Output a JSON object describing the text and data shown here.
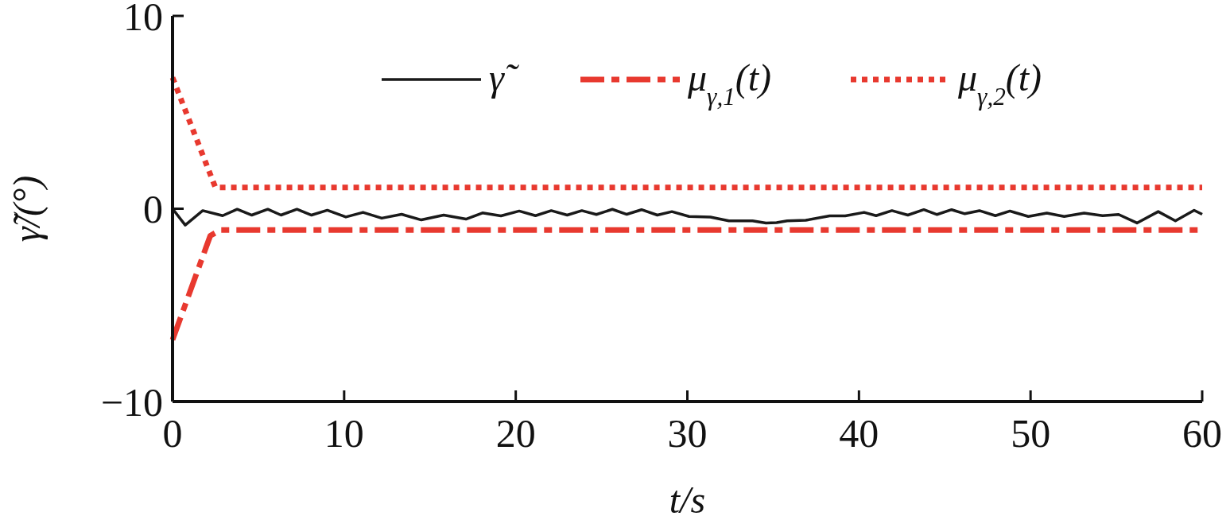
{
  "chart_data": {
    "type": "line",
    "xlabel": "t/s",
    "ylabel": "γ̃/(°)",
    "xlim": [
      0,
      60
    ],
    "ylim": [
      -10,
      10
    ],
    "xticks": [
      0,
      10,
      20,
      30,
      40,
      50,
      60
    ],
    "yticks": [
      {
        "value": -10,
        "label": "−10"
      },
      0,
      10
    ],
    "grid": false,
    "legend": "top",
    "marker": "none",
    "series": [
      {
        "name": "γ̃",
        "color": "#1a1a1a",
        "line_style": "solid",
        "x": [
          0,
          0.74,
          1.76,
          2.92,
          3.77,
          4.62,
          5.55,
          6.32,
          7.25,
          8.1,
          9.02,
          10.1,
          11.1,
          12.19,
          13.35,
          14.5,
          15.8,
          17.1,
          18.06,
          19.14,
          20.2,
          21.15,
          22.07,
          23.0,
          23.85,
          24.7,
          25.63,
          26.47,
          27.33,
          28.25,
          29.1,
          30.1,
          31.34,
          32.42,
          33.8,
          34.58,
          35.2,
          35.82,
          36.9,
          38.29,
          39.2,
          40.3,
          41.0,
          41.92,
          42.85,
          43.78,
          44.55,
          45.4,
          46.17,
          47.02,
          47.95,
          48.8,
          49.87,
          50.95,
          51.96,
          53.12,
          54.2,
          55.13,
          56.2,
          57.44,
          58.44,
          59.53,
          60
        ],
        "values": [
          0,
          -0.85,
          -0.1,
          -0.36,
          -0.03,
          -0.33,
          -0.03,
          -0.33,
          -0.03,
          -0.33,
          -0.08,
          -0.43,
          -0.19,
          -0.49,
          -0.29,
          -0.58,
          -0.33,
          -0.54,
          -0.22,
          -0.37,
          -0.12,
          -0.36,
          -0.1,
          -0.33,
          -0.1,
          -0.3,
          -0.03,
          -0.29,
          -0.05,
          -0.33,
          -0.15,
          -0.4,
          -0.43,
          -0.63,
          -0.63,
          -0.74,
          -0.72,
          -0.63,
          -0.6,
          -0.37,
          -0.37,
          -0.19,
          -0.36,
          -0.1,
          -0.33,
          -0.05,
          -0.3,
          -0.05,
          -0.26,
          -0.1,
          -0.36,
          -0.12,
          -0.4,
          -0.23,
          -0.4,
          -0.23,
          -0.36,
          -0.3,
          -0.74,
          -0.15,
          -0.63,
          -0.08,
          -0.29
        ]
      },
      {
        "name": "μ$_{γ,1}$(t)",
        "color": "#e8392f",
        "line_style": "dashed",
        "x": [
          0,
          2.2,
          2.8,
          60
        ],
        "values": [
          -6.8,
          -1.4,
          -1.1,
          -1.1
        ]
      },
      {
        "name": "μ$_{γ,2}$(t)",
        "color": "#e8392f",
        "line_style": "dotted",
        "x": [
          0,
          2.5,
          60
        ],
        "values": [
          6.8,
          1.1,
          1.1
        ]
      }
    ]
  }
}
